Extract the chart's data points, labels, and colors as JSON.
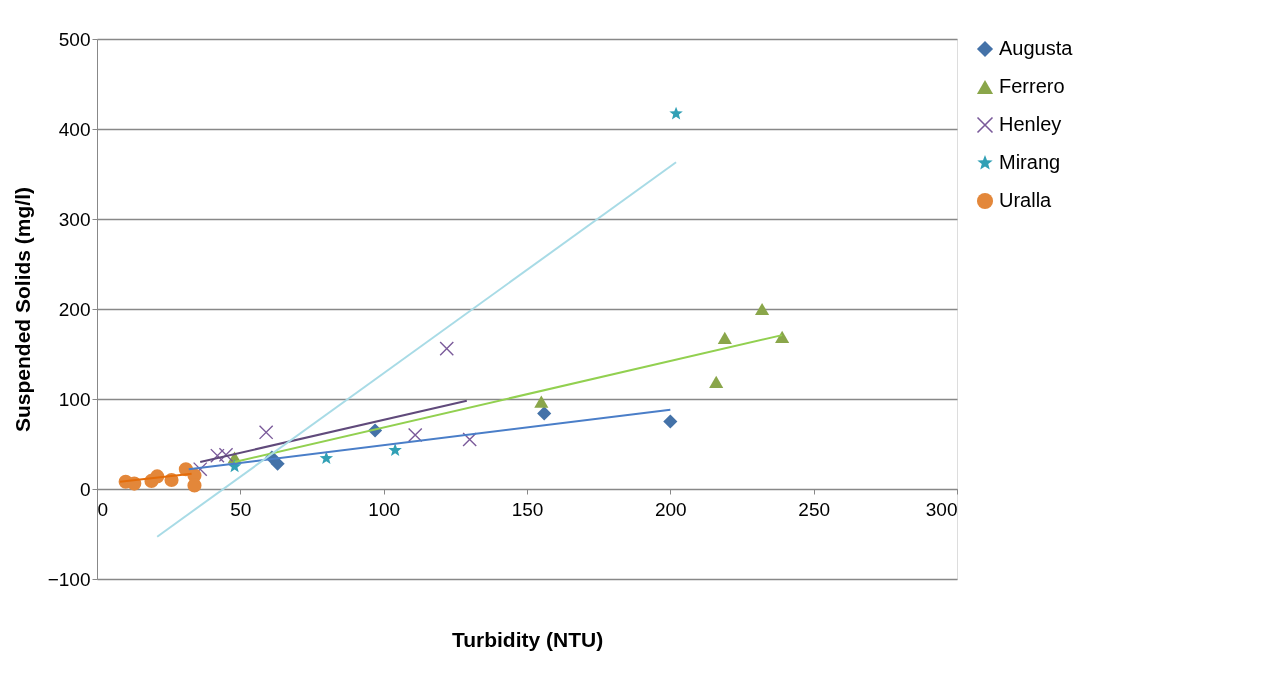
{
  "chart_data": {
    "type": "scatter",
    "xlabel": "Turbidity (NTU)",
    "ylabel": "Suspended Solids (mg/l)",
    "xlim": [
      0,
      300
    ],
    "ylim": [
      -100,
      500
    ],
    "xticks": [
      0,
      50,
      100,
      150,
      200,
      250,
      300
    ],
    "yticks": [
      -100,
      0,
      100,
      200,
      300,
      400,
      500
    ],
    "grid": "y",
    "legend": "right",
    "series": [
      {
        "name": "Augusta",
        "color": "#4472a8",
        "marker": "diamond",
        "x": [
          61,
          63,
          97,
          156,
          200
        ],
        "values": [
          35,
          28,
          65,
          84,
          75
        ]
      },
      {
        "name": "Ferrero",
        "color": "#8aa64a",
        "marker": "triangle",
        "x": [
          48,
          155,
          216,
          219,
          232,
          239
        ],
        "values": [
          35,
          97,
          119,
          168,
          200,
          169
        ]
      },
      {
        "name": "Henley",
        "color": "#7a5a9a",
        "marker": "cross",
        "x": [
          36,
          42,
          45,
          59,
          111,
          122,
          130
        ],
        "values": [
          22,
          37,
          38,
          63,
          60,
          156,
          55
        ]
      },
      {
        "name": "Mirang",
        "color": "#31a0b5",
        "marker": "star",
        "x": [
          48,
          80,
          104,
          202
        ],
        "values": [
          25,
          34,
          43,
          417
        ]
      },
      {
        "name": "Uralla",
        "color": "#e3873a",
        "marker": "circle",
        "x": [
          10,
          13,
          19,
          21,
          26,
          31,
          34,
          34
        ],
        "values": [
          8,
          6,
          9,
          14,
          10,
          22,
          15,
          4
        ]
      },
      {
        "type": "line",
        "color": "#4a7ec8",
        "marker": "none",
        "x": [
          32,
          200
        ],
        "values": [
          22,
          88
        ]
      },
      {
        "type": "line",
        "color": "#92d050",
        "marker": "none",
        "x": [
          48,
          239
        ],
        "values": [
          30,
          171
        ]
      },
      {
        "type": "line",
        "color": "#604a7b",
        "marker": "none",
        "x": [
          36,
          129
        ],
        "values": [
          30,
          98
        ]
      },
      {
        "type": "line",
        "color": "#a8dbe6",
        "marker": "none",
        "x": [
          21,
          202
        ],
        "values": [
          -53,
          363
        ]
      },
      {
        "type": "line",
        "color": "#e46c0a",
        "marker": "none",
        "x": [
          8,
          33
        ],
        "values": [
          8,
          17
        ]
      }
    ]
  }
}
